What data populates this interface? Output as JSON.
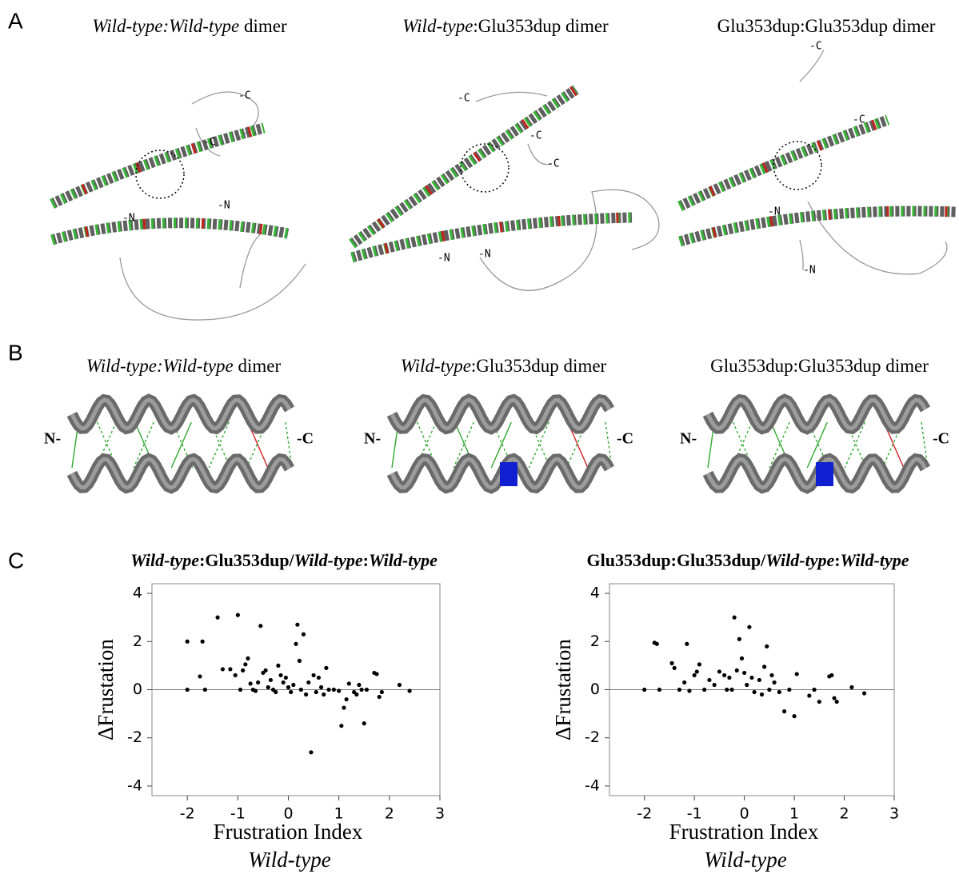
{
  "panel_a": {
    "label": "A",
    "structures": [
      {
        "title": [
          {
            "text": "Wild-type:Wild-type",
            "italic": true
          },
          {
            "text": " dimer",
            "italic": false
          }
        ],
        "termini": [
          "-C",
          "-C",
          "-N",
          "-N"
        ]
      },
      {
        "title": [
          {
            "text": "Wild-type",
            "italic": true
          },
          {
            "text": ":Glu353dup dimer",
            "italic": false
          }
        ],
        "termini": [
          "-C",
          "-C",
          "-C",
          "-N",
          "-N"
        ]
      },
      {
        "title": [
          {
            "text": "Glu353dup:Glu353dup dimer",
            "italic": false
          }
        ],
        "termini": [
          "-C",
          "-C",
          "-N",
          "-N"
        ]
      }
    ]
  },
  "panel_b": {
    "label": "B",
    "structures": [
      {
        "title": [
          {
            "text": "Wild-type:Wild-type",
            "italic": true
          },
          {
            "text": " dimer",
            "italic": false
          }
        ],
        "n_label": "N-",
        "c_label": "-C"
      },
      {
        "title": [
          {
            "text": "Wild-type",
            "italic": true
          },
          {
            "text": ":Glu353dup dimer",
            "italic": false
          }
        ],
        "n_label": "N-",
        "c_label": "-C"
      },
      {
        "title": [
          {
            "text": "Glu353dup:Glu353dup dimer",
            "italic": false
          }
        ],
        "n_label": "N-",
        "c_label": "-C"
      }
    ]
  },
  "panel_c": {
    "label": "C"
  },
  "chart_data": [
    {
      "type": "scatter",
      "title": [
        {
          "text": "Wild-type",
          "italic": true
        },
        {
          "text": ":Glu353dup/",
          "italic": false
        },
        {
          "text": "Wild-type",
          "italic": true
        },
        {
          "text": ":",
          "italic": false
        },
        {
          "text": "Wild-type",
          "italic": true
        }
      ],
      "y_label": "ΔFrustation",
      "x_label": "Frustration Index",
      "x_sublabel": "Wild-type",
      "xlim": [
        -2.7,
        3.0
      ],
      "ylim": [
        -4.4,
        4.4
      ],
      "xticks": [
        -2,
        -1,
        0,
        1,
        2,
        3
      ],
      "yticks": [
        -4,
        -2,
        0,
        2,
        4
      ],
      "zero_line": true,
      "series": [
        {
          "color": "#000000",
          "x": [
            -2.0,
            -1.7,
            -2.0,
            -1.75,
            -1.65,
            -1.4,
            -1.3,
            -1.15,
            -1.05,
            -1.0,
            -0.95,
            -0.9,
            -0.85,
            -0.8,
            -0.75,
            -0.7,
            -0.65,
            -0.6,
            -0.55,
            -0.5,
            -0.45,
            -0.4,
            -0.35,
            -0.3,
            -0.25,
            -0.2,
            -0.15,
            -0.1,
            -0.05,
            0.0,
            0.05,
            0.1,
            0.15,
            0.18,
            0.22,
            0.25,
            0.3,
            0.35,
            0.4,
            0.45,
            0.5,
            0.55,
            0.6,
            0.65,
            0.7,
            0.75,
            0.8,
            0.9,
            1.0,
            1.05,
            1.1,
            1.15,
            1.2,
            1.3,
            1.35,
            1.4,
            1.45,
            1.5,
            1.55,
            1.7,
            1.75,
            1.8,
            1.85,
            2.2,
            2.4
          ],
          "values": [
            2.0,
            2.0,
            0.0,
            0.55,
            0.0,
            3.0,
            0.85,
            0.85,
            0.6,
            3.1,
            0.0,
            0.8,
            1.05,
            1.3,
            0.25,
            0.0,
            -0.05,
            0.3,
            2.65,
            0.7,
            0.8,
            0.1,
            0.4,
            0.0,
            -0.1,
            1.0,
            0.6,
            0.3,
            0.5,
            0.1,
            -0.1,
            0.2,
            1.9,
            2.7,
            1.2,
            0.0,
            2.3,
            -0.2,
            0.3,
            -2.6,
            0.6,
            -0.1,
            0.5,
            0.1,
            -0.2,
            0.9,
            0.0,
            0.0,
            -0.05,
            -1.5,
            -0.75,
            -0.4,
            0.25,
            -0.1,
            -0.2,
            0.2,
            0.0,
            -1.4,
            0.0,
            0.7,
            0.65,
            -0.3,
            -0.1,
            0.2,
            -0.05
          ]
        }
      ]
    },
    {
      "type": "scatter",
      "title": [
        {
          "text": "Glu353dup:Glu353dup/",
          "italic": false
        },
        {
          "text": "Wild-type",
          "italic": true
        },
        {
          "text": ":",
          "italic": false
        },
        {
          "text": "Wild-type",
          "italic": true
        }
      ],
      "y_label": "ΔFrustation",
      "x_label": "Frustration Index",
      "x_sublabel": "Wild-type",
      "xlim": [
        -2.7,
        3.0
      ],
      "ylim": [
        -4.4,
        4.4
      ],
      "xticks": [
        -2,
        -1,
        0,
        1,
        2,
        3
      ],
      "yticks": [
        -4,
        -2,
        0,
        2,
        4
      ],
      "zero_line": true,
      "series": [
        {
          "color": "#000000",
          "x": [
            -2.0,
            -1.8,
            -1.75,
            -1.7,
            -1.45,
            -1.4,
            -1.3,
            -1.2,
            -1.15,
            -1.1,
            -1.0,
            -0.95,
            -0.9,
            -0.8,
            -0.7,
            -0.6,
            -0.5,
            -0.4,
            -0.35,
            -0.3,
            -0.25,
            -0.2,
            -0.15,
            -0.1,
            -0.05,
            0.0,
            0.05,
            0.1,
            0.15,
            0.2,
            0.3,
            0.35,
            0.4,
            0.45,
            0.5,
            0.55,
            0.6,
            0.7,
            0.8,
            0.9,
            1.0,
            1.05,
            1.3,
            1.4,
            1.5,
            1.7,
            1.75,
            1.8,
            1.85,
            2.15,
            2.4
          ],
          "values": [
            0.0,
            1.95,
            1.9,
            0.0,
            1.1,
            0.9,
            0.0,
            0.3,
            1.9,
            -0.05,
            0.6,
            0.75,
            1.05,
            0.0,
            0.4,
            0.2,
            0.75,
            0.6,
            0.0,
            0.5,
            0.0,
            3.0,
            0.8,
            2.1,
            1.3,
            0.7,
            0.2,
            2.6,
            0.5,
            -0.1,
            0.4,
            -0.2,
            0.95,
            1.8,
            0.0,
            0.6,
            0.3,
            -0.1,
            -0.9,
            0.0,
            -1.1,
            0.65,
            -0.25,
            0.0,
            -0.5,
            0.55,
            0.6,
            -0.35,
            -0.5,
            0.1,
            -0.15
          ]
        }
      ]
    }
  ]
}
